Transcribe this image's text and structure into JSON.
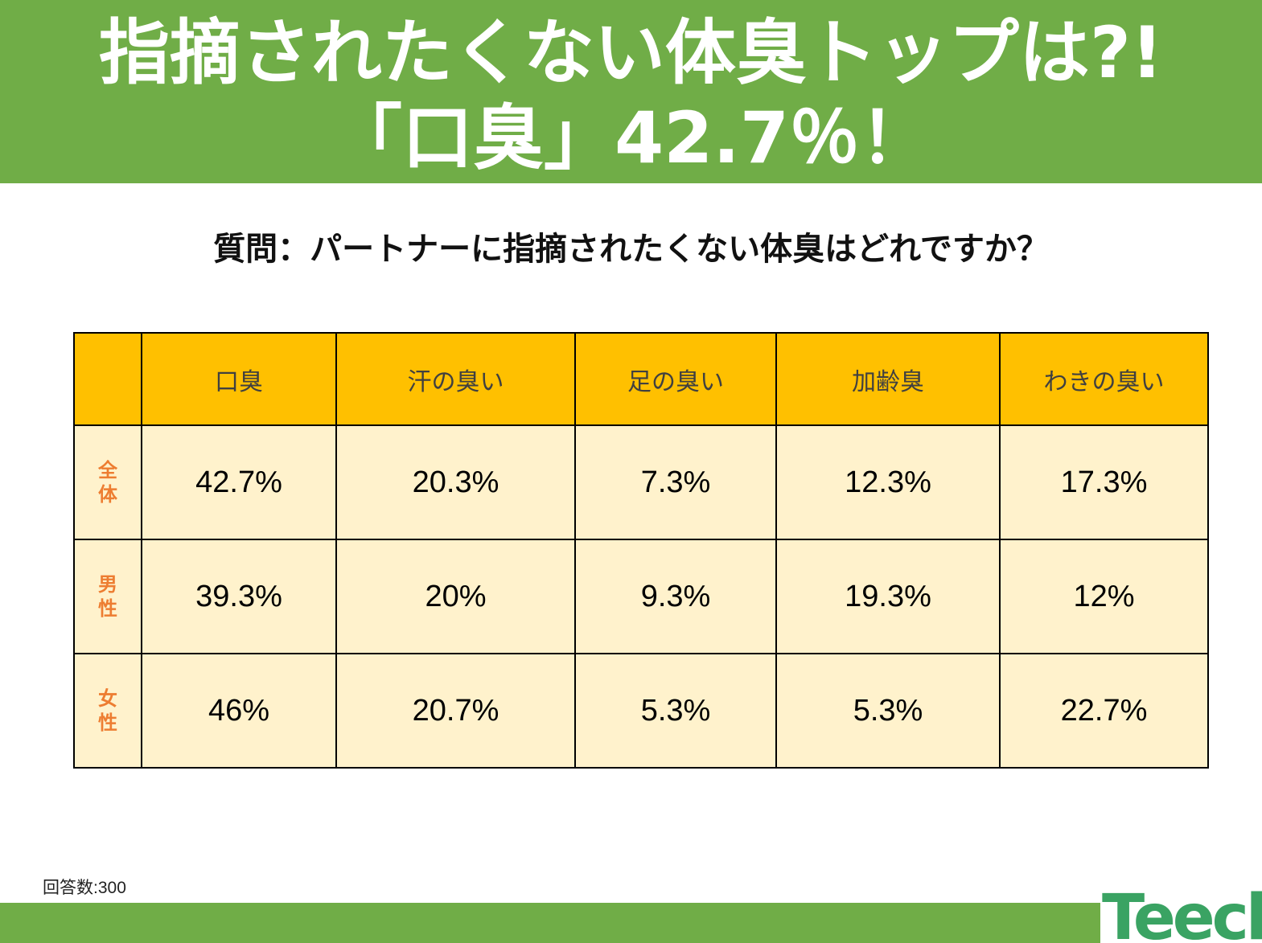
{
  "header": {
    "title_line1": "指摘されたくない体臭トップは?!",
    "title_line2": "「口臭」42.7％！"
  },
  "question": "質問：パートナーに指摘されたくない体臭はどれですか？",
  "chart_data": {
    "type": "table",
    "columns": [
      "口臭",
      "汗の臭い",
      "足の臭い",
      "加齢臭",
      "わきの臭い"
    ],
    "rows": [
      {
        "label": "全体",
        "label_chars": [
          "全",
          "体"
        ],
        "values": [
          "42.7%",
          "20.3%",
          "7.3%",
          "12.3%",
          "17.3%"
        ]
      },
      {
        "label": "男性",
        "label_chars": [
          "男",
          "性"
        ],
        "values": [
          "39.3%",
          "20%",
          "9.3%",
          "19.3%",
          "12%"
        ]
      },
      {
        "label": "女性",
        "label_chars": [
          "女",
          "性"
        ],
        "values": [
          "46%",
          "20.7%",
          "5.3%",
          "5.3%",
          "22.7%"
        ]
      }
    ]
  },
  "footnote": "回答数:300",
  "logo": {
    "text": "Teech"
  },
  "colors": {
    "banner": "#70ad47",
    "header_cell": "#ffc000",
    "body_cell": "#fff2cc",
    "row_label": "#ed7d31",
    "logo": "#3aa363"
  }
}
